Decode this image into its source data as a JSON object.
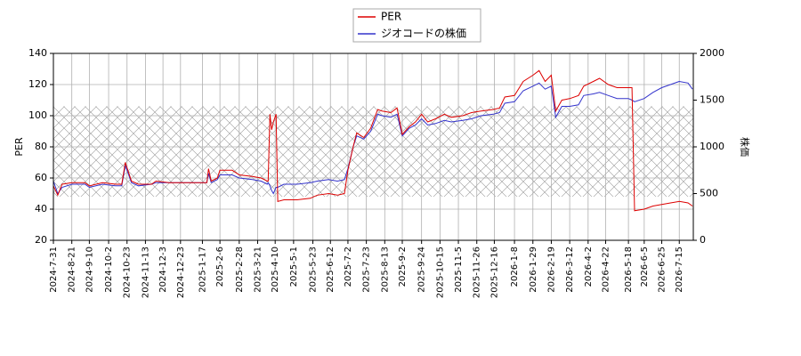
{
  "chart_data": {
    "type": "line",
    "x": [
      "2024-7-31",
      "2024-8-5",
      "2024-8-10",
      "2024-8-21",
      "2024-9-5",
      "2024-9-10",
      "2024-9-25",
      "2024-10-10",
      "2024-10-17",
      "2024-10-21",
      "2024-10-28",
      "2024-11-5",
      "2024-11-20",
      "2024-11-25",
      "2024-12-10",
      "2024-12-25",
      "2025-1-10",
      "2025-1-17",
      "2025-1-22",
      "2025-1-24",
      "2025-1-27",
      "2025-2-3",
      "2025-2-6",
      "2025-2-20",
      "2025-2-28",
      "2025-3-15",
      "2025-3-25",
      "2025-4-1",
      "2025-4-2",
      "2025-4-4",
      "2025-4-6",
      "2025-4-8",
      "2025-4-11",
      "2025-4-13",
      "2025-4-20",
      "2025-5-5",
      "2025-5-20",
      "2025-5-28",
      "2025-6-10",
      "2025-6-20",
      "2025-6-28",
      "2025-7-2",
      "2025-7-8",
      "2025-7-12",
      "2025-7-20",
      "2025-7-28",
      "2025-8-5",
      "2025-8-10",
      "2025-8-20",
      "2025-8-27",
      "2025-9-2",
      "2025-9-10",
      "2025-9-17",
      "2025-9-24",
      "2025-10-1",
      "2025-10-10",
      "2025-10-20",
      "2025-10-28",
      "2025-11-10",
      "2025-11-20",
      "2025-12-1",
      "2025-12-15",
      "2025-12-22",
      "2025-12-28",
      "2026-1-8",
      "2026-1-18",
      "2026-1-29",
      "2026-2-5",
      "2026-2-12",
      "2026-2-19",
      "2026-2-24",
      "2026-3-3",
      "2026-3-12",
      "2026-3-22",
      "2026-3-28",
      "2026-4-8",
      "2026-4-15",
      "2026-4-25",
      "2026-5-5",
      "2026-5-18",
      "2026-5-22",
      "2026-5-25",
      "2026-6-5",
      "2026-6-15",
      "2026-6-25",
      "2026-7-5",
      "2026-7-15",
      "2026-7-25",
      "2026-7-30"
    ],
    "series": [
      {
        "name": "PER",
        "color": "#dd0000",
        "values": [
          55,
          49,
          56,
          57,
          57,
          55,
          57,
          56,
          56,
          70,
          58,
          56,
          56,
          58,
          57,
          57,
          57,
          57,
          57,
          66,
          58,
          60,
          65,
          65,
          62,
          61,
          60,
          58,
          58,
          101,
          91,
          96,
          101,
          45,
          46,
          46,
          47,
          49,
          50,
          49,
          50,
          65,
          80,
          89,
          86,
          92,
          104,
          103,
          102,
          105,
          88,
          93,
          96,
          101,
          96,
          98,
          101,
          99,
          100,
          102,
          103,
          104,
          105,
          112,
          113,
          122,
          126,
          129,
          122,
          126,
          103,
          110,
          111,
          113,
          119,
          122,
          124,
          120,
          118,
          118,
          118,
          39,
          40,
          42,
          43,
          44,
          45,
          44,
          42
        ]
      },
      {
        "name": "ジオコードの株価",
        "color": "#3333cc",
        "axis": "y2",
        "values": [
          633,
          500,
          567,
          600,
          600,
          567,
          600,
          583,
          583,
          800,
          617,
          583,
          600,
          617,
          617,
          617,
          617,
          617,
          617,
          717,
          617,
          650,
          700,
          700,
          667,
          650,
          633,
          600,
          617,
          583,
          533,
          500,
          567,
          567,
          600,
          600,
          617,
          633,
          650,
          633,
          650,
          767,
          1000,
          1117,
          1083,
          1167,
          1350,
          1333,
          1317,
          1350,
          1117,
          1200,
          1233,
          1300,
          1233,
          1250,
          1283,
          1267,
          1283,
          1300,
          1333,
          1350,
          1367,
          1467,
          1483,
          1600,
          1650,
          1683,
          1617,
          1650,
          1317,
          1433,
          1433,
          1450,
          1550,
          1567,
          1583,
          1550,
          1517,
          1517,
          1500,
          1483,
          1517,
          1583,
          1633,
          1667,
          1700,
          1683,
          1617
        ]
      }
    ],
    "xlim": [
      "2024-7-31",
      "2026-7-31"
    ],
    "xticks": [
      "2024-7-31",
      "2024-8-21",
      "2024-9-10",
      "2024-10-2",
      "2024-10-23",
      "2024-11-13",
      "2024-12-3",
      "2024-12-23",
      "2025-1-17",
      "2025-2-6",
      "2025-2-28",
      "2025-3-21",
      "2025-4-10",
      "2025-5-1",
      "2025-5-23",
      "2025-6-12",
      "2025-7-2",
      "2025-7-23",
      "2025-8-13",
      "2025-9-2",
      "2025-9-24",
      "2025-10-15",
      "2025-11-5",
      "2025-11-26",
      "2025-12-16",
      "2026-1-8",
      "2026-1-29",
      "2026-2-19",
      "2026-3-12",
      "2026-4-2",
      "2026-4-22",
      "2026-5-18",
      "2026-6-5",
      "2026-6-25",
      "2026-7-15"
    ],
    "ylim": [
      20,
      140
    ],
    "yticks": [
      20,
      40,
      60,
      80,
      100,
      120,
      140
    ],
    "ylabel": "PER",
    "y2lim": [
      0,
      2000
    ],
    "y2ticks": [
      0,
      500,
      1000,
      1500,
      2000
    ],
    "y2label": "株価",
    "shaded_range": [
      48,
      106
    ],
    "grid": true,
    "legend": "top"
  }
}
